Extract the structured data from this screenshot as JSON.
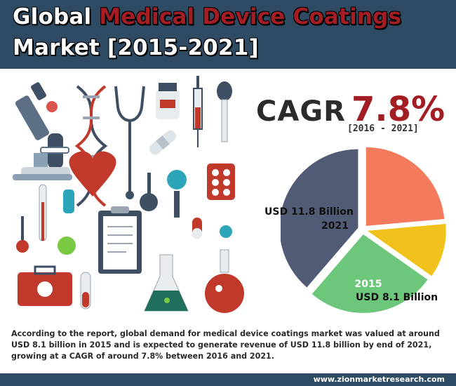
{
  "header": {
    "title_line1_plain": "Global ",
    "title_line1_accent": "Medical Device Coatings",
    "title_line2": "Market [2015-2021]"
  },
  "cagr": {
    "label": "CAGR",
    "value": "7.8%",
    "period": "[2016 - 2021]"
  },
  "labels": {
    "value_2021": "USD 11.8 Billion",
    "year_2021": "2021",
    "year_2015": "2015",
    "value_2015": "USD 8.1 Billion"
  },
  "description": "According to the report, global demand for medical device coatings market was valued at around USD 8.1 billion in 2015 and is expected to generate revenue of USD 11.8 billion by end of 2021, growing at a CAGR of around 7.8% between 2016 and 2021.",
  "footer": {
    "url": "www.zionmarketresearch.com"
  },
  "colors": {
    "header_bg": "#2f4b64",
    "accent": "#a31d25"
  },
  "chart_data": {
    "type": "pie",
    "title": "",
    "series": [
      {
        "name": "USD 11.8 Billion 2021",
        "value": 11.8,
        "color": "#515b76"
      },
      {
        "name": "2015 USD 8.1 Billion",
        "value": 8.1,
        "color": "#6dc77a"
      },
      {
        "name": "",
        "value": 3.4,
        "color": "#f1c21b"
      },
      {
        "name": "",
        "value": 7.2,
        "color": "#f37a5c"
      }
    ],
    "legend": "none"
  }
}
